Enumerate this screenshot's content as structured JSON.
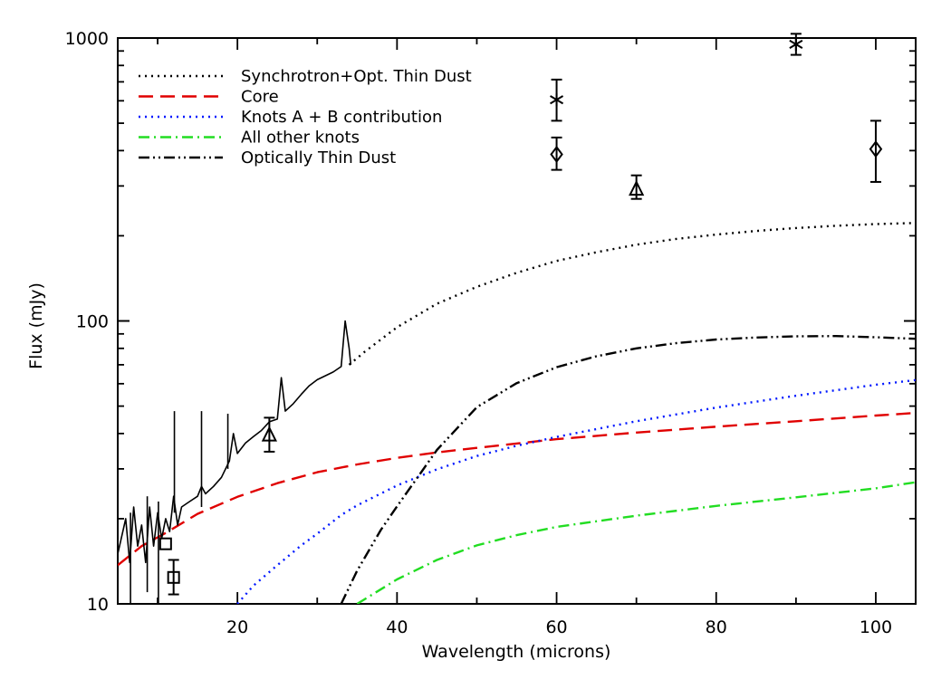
{
  "chart_data": {
    "type": "line",
    "xlabel": "Wavelength (microns)",
    "ylabel": "Flux (mJy)",
    "xlim": [
      5,
      105
    ],
    "ylim": [
      10,
      1000
    ],
    "yscale": "log",
    "grid": false,
    "legend_position": "top-left",
    "x_ticks": [
      20,
      40,
      60,
      80,
      100
    ],
    "x_tick_labels": [
      "20",
      "40",
      "60",
      "80",
      "100"
    ],
    "y_ticks": [
      10,
      100,
      1000
    ],
    "y_tick_labels": [
      "10",
      "100",
      "1000"
    ],
    "series": [
      {
        "name": "Synchrotron+Opt. Thin Dust",
        "color": "#000000",
        "style": "dotted",
        "x": [
          34,
          36,
          40,
          45,
          50,
          55,
          60,
          65,
          70,
          75,
          80,
          85,
          90,
          95,
          100,
          105
        ],
        "y": [
          70,
          78,
          95,
          115,
          132,
          148,
          163,
          175,
          186,
          195,
          202,
          208,
          213,
          217,
          220,
          222
        ]
      },
      {
        "name": "Core",
        "color": "#e00000",
        "style": "dashed",
        "x": [
          5,
          8,
          11,
          15,
          20,
          25,
          30,
          35,
          40,
          45,
          50,
          60,
          70,
          80,
          90,
          100,
          105
        ],
        "y": [
          13.7,
          16,
          17.8,
          20.8,
          23.9,
          26.7,
          29.2,
          31.1,
          32.8,
          34.3,
          35.6,
          38.2,
          40.3,
          42.3,
          44.2,
          46.3,
          47.3
        ]
      },
      {
        "name": "Knots A + B contribution",
        "color": "#0018ff",
        "style": "dotted",
        "x": [
          20,
          22,
          25,
          28,
          30,
          33,
          35,
          40,
          45,
          50,
          55,
          60,
          70,
          80,
          90,
          100,
          105
        ],
        "y": [
          10,
          11.6,
          13.7,
          16.1,
          17.7,
          20.6,
          22.3,
          26.2,
          29.9,
          33.3,
          36.2,
          38.9,
          44.2,
          49.4,
          54.4,
          59.5,
          61.8
        ]
      },
      {
        "name": "All other knots",
        "color": "#22dd22",
        "style": "dashdot",
        "x": [
          35,
          40,
          45,
          50,
          55,
          60,
          70,
          80,
          90,
          100,
          105
        ],
        "y": [
          10,
          12.2,
          14.3,
          16.1,
          17.5,
          18.7,
          20.5,
          22.2,
          23.8,
          25.6,
          26.9
        ]
      },
      {
        "name": "Optically Thin Dust",
        "color": "#000000",
        "style": "dashdotdot",
        "x": [
          33,
          35,
          38,
          40,
          43,
          45,
          50,
          55,
          60,
          65,
          70,
          75,
          80,
          85,
          90,
          95,
          100,
          105
        ],
        "y": [
          10,
          13.1,
          18.3,
          22.1,
          29.1,
          35,
          49.6,
          60.3,
          68.6,
          75,
          80,
          83.5,
          86,
          87.4,
          88.2,
          88.4,
          87.6,
          86.5
        ]
      },
      {
        "name": "",
        "color": "#000000",
        "style": "solid",
        "x": [
          5,
          6,
          6.5,
          7,
          7.5,
          8,
          8.5,
          9,
          9.5,
          10,
          10.5,
          11,
          11.5,
          12,
          12.5,
          13,
          14,
          15,
          15.5,
          16,
          17,
          18,
          19,
          19.5,
          20,
          21,
          22,
          23,
          24,
          25,
          25.5,
          26,
          27,
          28,
          29,
          30,
          31,
          32,
          33,
          33.5,
          34,
          34.2
        ],
        "y": [
          15,
          20,
          14,
          22,
          16,
          19,
          14,
          22,
          16,
          21,
          17,
          20,
          18,
          24,
          19,
          22,
          23,
          24,
          26,
          24.5,
          26,
          28,
          32,
          40,
          34,
          37,
          39,
          41,
          44,
          45,
          63,
          48,
          51,
          55,
          59,
          62,
          64,
          66,
          69,
          100,
          80,
          70
        ]
      }
    ],
    "spectrum_spikes": [
      {
        "x": 6.6,
        "y_top": 21,
        "y_bottom": 10
      },
      {
        "x": 8.7,
        "y_top": 24,
        "y_bottom": 11
      },
      {
        "x": 10.1,
        "y_top": 23,
        "y_bottom": 10
      },
      {
        "x": 12.1,
        "y_top": 48,
        "y_bottom": 21
      },
      {
        "x": 15.5,
        "y_top": 48,
        "y_bottom": 22
      },
      {
        "x": 18.8,
        "y_top": 47,
        "y_bottom": 30
      }
    ],
    "points": [
      {
        "marker": "square",
        "x": 11,
        "y": 16.3,
        "err_low": null,
        "err_high": null
      },
      {
        "marker": "square",
        "x": 12,
        "y": 12.4,
        "err_low": 10.8,
        "err_high": 14.3
      },
      {
        "marker": "triangle",
        "x": 24,
        "y": 39.5,
        "err_low": 34.5,
        "err_high": 45.5
      },
      {
        "marker": "triangle",
        "x": 70,
        "y": 292,
        "err_low": 270,
        "err_high": 327
      },
      {
        "marker": "asterisk",
        "x": 60,
        "y": 605,
        "err_low": 510,
        "err_high": 713
      },
      {
        "marker": "diamond",
        "x": 60,
        "y": 388,
        "err_low": 342,
        "err_high": 445
      },
      {
        "marker": "asterisk",
        "x": 90,
        "y": 950,
        "err_low": 872,
        "err_high": 1035
      },
      {
        "marker": "diamond",
        "x": 100,
        "y": 405,
        "err_low": 310,
        "err_high": 510
      }
    ]
  }
}
